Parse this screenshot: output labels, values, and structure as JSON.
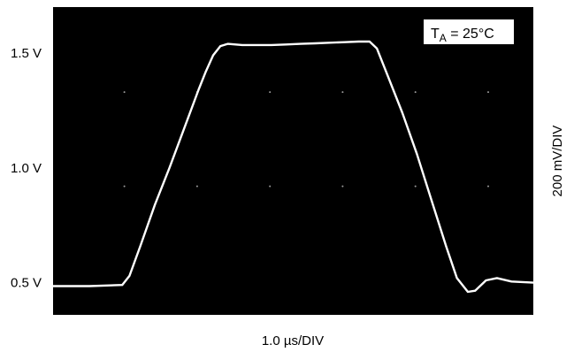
{
  "chart_data": {
    "type": "line",
    "title": "",
    "xlabel": "1.0 µs/DIV",
    "ylabel": "200 mV/DIV",
    "x_unit": "µs",
    "y_unit": "V",
    "xlim": [
      0,
      6.6
    ],
    "ylim": [
      0.36,
      1.7
    ],
    "grid": "dotted",
    "y_ticks": [
      {
        "value": 0.5,
        "label": "0.5 V"
      },
      {
        "value": 1.0,
        "label": "1.0 V"
      },
      {
        "value": 1.5,
        "label": "1.5 V"
      }
    ],
    "annotation": {
      "text_main": "T",
      "text_sub": "A",
      "text_rest": " = 25°C"
    },
    "series": [
      {
        "color": "#ffffff",
        "x": [
          0.0,
          0.5,
          0.95,
          1.05,
          1.2,
          1.4,
          1.6,
          1.8,
          2.0,
          2.1,
          2.2,
          2.3,
          2.4,
          2.6,
          2.8,
          3.0,
          3.2,
          3.4,
          3.6,
          3.8,
          4.0,
          4.2,
          4.35,
          4.45,
          4.6,
          4.8,
          5.0,
          5.2,
          5.4,
          5.55,
          5.7,
          5.8,
          5.95,
          6.1,
          6.3,
          6.6
        ],
        "y": [
          0.485,
          0.485,
          0.49,
          0.53,
          0.66,
          0.84,
          1.0,
          1.17,
          1.34,
          1.42,
          1.49,
          1.53,
          1.54,
          1.535,
          1.535,
          1.535,
          1.537,
          1.54,
          1.542,
          1.545,
          1.547,
          1.55,
          1.55,
          1.52,
          1.4,
          1.24,
          1.06,
          0.86,
          0.66,
          0.52,
          0.46,
          0.465,
          0.51,
          0.52,
          0.505,
          0.5
        ]
      }
    ]
  }
}
